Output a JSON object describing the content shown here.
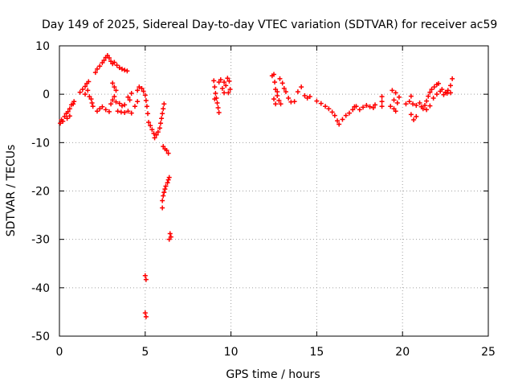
{
  "chart_data": {
    "type": "scatter",
    "title": "Day 149 of 2025, Sidereal Day-to-day VTEC variation (SDTVAR) for receiver ac59",
    "xlabel": "GPS time / hours",
    "ylabel": "SDTVAR / TECUs",
    "xlim": [
      0,
      25
    ],
    "ylim": [
      -50,
      10
    ],
    "xticks": [
      0,
      5,
      10,
      15,
      20,
      25
    ],
    "yticks": [
      10,
      0,
      -10,
      -20,
      -30,
      -40,
      -50
    ],
    "grid": true,
    "legend": "none",
    "marker": "plus",
    "series_color": "#ff0000",
    "series": [
      {
        "name": "SDTVAR",
        "points": [
          [
            0.05,
            -6.0
          ],
          [
            0.12,
            -5.3
          ],
          [
            0.2,
            -5.6
          ],
          [
            0.3,
            -4.6
          ],
          [
            0.4,
            -4.0
          ],
          [
            0.5,
            -3.6
          ],
          [
            0.6,
            -3.0
          ],
          [
            0.7,
            -2.2
          ],
          [
            0.8,
            -2.0
          ],
          [
            0.85,
            -1.5
          ],
          [
            0.45,
            -5.0
          ],
          [
            0.6,
            -4.5
          ],
          [
            1.2,
            0.4
          ],
          [
            1.35,
            1.0
          ],
          [
            1.5,
            1.6
          ],
          [
            1.6,
            2.2
          ],
          [
            1.7,
            2.6
          ],
          [
            1.75,
            -0.5
          ],
          [
            1.85,
            -1.0
          ],
          [
            1.9,
            -1.8
          ],
          [
            1.95,
            -2.5
          ],
          [
            1.5,
            0.0
          ],
          [
            1.65,
            0.8
          ],
          [
            2.1,
            4.5
          ],
          [
            2.2,
            5.2
          ],
          [
            2.35,
            5.8
          ],
          [
            2.5,
            6.5
          ],
          [
            2.6,
            7.0
          ],
          [
            2.7,
            7.6
          ],
          [
            2.8,
            8.0
          ],
          [
            2.9,
            7.5
          ],
          [
            3.0,
            6.8
          ],
          [
            3.1,
            6.3
          ],
          [
            3.2,
            6.6
          ],
          [
            3.35,
            6.0
          ],
          [
            3.5,
            5.5
          ],
          [
            3.65,
            5.2
          ],
          [
            3.8,
            5.0
          ],
          [
            3.95,
            4.8
          ],
          [
            2.2,
            -3.5
          ],
          [
            2.35,
            -3.0
          ],
          [
            2.5,
            -2.6
          ],
          [
            2.7,
            -3.2
          ],
          [
            2.9,
            -3.6
          ],
          [
            3.0,
            -2.0
          ],
          [
            3.1,
            -1.2
          ],
          [
            3.2,
            -0.5
          ],
          [
            3.3,
            -1.6
          ],
          [
            3.5,
            -1.9
          ],
          [
            3.65,
            -2.4
          ],
          [
            3.8,
            -2.2
          ],
          [
            3.1,
            2.3
          ],
          [
            3.2,
            1.5
          ],
          [
            3.3,
            0.8
          ],
          [
            3.4,
            -3.5
          ],
          [
            3.6,
            -3.7
          ],
          [
            3.8,
            -3.8
          ],
          [
            4.0,
            -3.5
          ],
          [
            4.2,
            -3.9
          ],
          [
            4.4,
            -2.5
          ],
          [
            4.55,
            -1.5
          ],
          [
            4.1,
            -1.2
          ],
          [
            4.0,
            -0.6
          ],
          [
            4.2,
            0.2
          ],
          [
            4.55,
            0.8
          ],
          [
            4.65,
            1.5
          ],
          [
            4.8,
            1.2
          ],
          [
            4.9,
            0.6
          ],
          [
            5.0,
            -0.2
          ],
          [
            5.05,
            -1.3
          ],
          [
            5.1,
            -2.5
          ],
          [
            5.15,
            -4.0
          ],
          [
            5.2,
            -5.8
          ],
          [
            5.3,
            -6.5
          ],
          [
            5.4,
            -7.3
          ],
          [
            5.5,
            -8.1
          ],
          [
            5.55,
            -9.0
          ],
          [
            5.65,
            -8.4
          ],
          [
            5.75,
            -7.8
          ],
          [
            5.85,
            -7.0
          ],
          [
            5.9,
            -6.0
          ],
          [
            5.95,
            -5.0
          ],
          [
            6.0,
            -4.0
          ],
          [
            6.05,
            -3.0
          ],
          [
            6.1,
            -2.0
          ],
          [
            6.05,
            -10.8
          ],
          [
            6.15,
            -11.3
          ],
          [
            6.25,
            -11.6
          ],
          [
            6.35,
            -12.2
          ],
          [
            6.0,
            -22.0
          ],
          [
            6.05,
            -21.0
          ],
          [
            6.1,
            -20.3
          ],
          [
            6.15,
            -19.6
          ],
          [
            6.2,
            -19.0
          ],
          [
            6.3,
            -18.3
          ],
          [
            6.35,
            -17.7
          ],
          [
            6.4,
            -17.2
          ],
          [
            6.0,
            -23.5
          ],
          [
            6.45,
            -28.8
          ],
          [
            6.5,
            -29.5
          ],
          [
            6.4,
            -30.0
          ],
          [
            5.0,
            -37.5
          ],
          [
            5.05,
            -38.3
          ],
          [
            5.0,
            -45.2
          ],
          [
            5.05,
            -46.0
          ],
          [
            9.0,
            2.8
          ],
          [
            9.05,
            1.5
          ],
          [
            9.1,
            0.2
          ],
          [
            9.15,
            -0.8
          ],
          [
            9.2,
            -1.8
          ],
          [
            9.25,
            -2.8
          ],
          [
            9.3,
            -3.8
          ],
          [
            9.05,
            -1.0
          ],
          [
            9.3,
            2.5
          ],
          [
            9.4,
            3.0
          ],
          [
            9.5,
            1.2
          ],
          [
            9.6,
            0.3
          ],
          [
            9.7,
            1.8
          ],
          [
            9.8,
            3.3
          ],
          [
            9.9,
            2.7
          ],
          [
            9.95,
            1.0
          ],
          [
            9.85,
            0.3
          ],
          [
            9.6,
            2.5
          ],
          [
            12.4,
            3.8
          ],
          [
            12.5,
            4.1
          ],
          [
            12.55,
            2.5
          ],
          [
            12.6,
            1.0
          ],
          [
            12.7,
            -0.3
          ],
          [
            12.8,
            -1.3
          ],
          [
            12.9,
            -2.0
          ],
          [
            12.5,
            -1.0
          ],
          [
            12.6,
            -2.0
          ],
          [
            12.7,
            0.5
          ],
          [
            12.85,
            3.2
          ],
          [
            13.0,
            2.3
          ],
          [
            13.1,
            1.2
          ],
          [
            13.2,
            0.5
          ],
          [
            13.35,
            -0.8
          ],
          [
            13.5,
            -1.6
          ],
          [
            13.7,
            -1.5
          ],
          [
            13.9,
            0.5
          ],
          [
            14.1,
            1.5
          ],
          [
            14.3,
            -0.3
          ],
          [
            14.45,
            -0.8
          ],
          [
            14.6,
            -0.5
          ],
          [
            15.0,
            -1.4
          ],
          [
            15.25,
            -1.9
          ],
          [
            15.5,
            -2.5
          ],
          [
            15.7,
            -3.0
          ],
          [
            15.9,
            -3.7
          ],
          [
            16.05,
            -4.4
          ],
          [
            16.2,
            -5.5
          ],
          [
            16.3,
            -6.2
          ],
          [
            16.5,
            -5.2
          ],
          [
            16.7,
            -4.4
          ],
          [
            16.9,
            -3.9
          ],
          [
            17.1,
            -3.2
          ],
          [
            17.2,
            -2.6
          ],
          [
            17.3,
            -2.5
          ],
          [
            17.5,
            -3.2
          ],
          [
            17.7,
            -2.7
          ],
          [
            17.9,
            -2.3
          ],
          [
            18.1,
            -2.6
          ],
          [
            18.3,
            -2.8
          ],
          [
            18.4,
            -2.2
          ],
          [
            18.8,
            -2.5
          ],
          [
            18.8,
            -1.5
          ],
          [
            18.8,
            -0.5
          ],
          [
            19.3,
            -2.5
          ],
          [
            19.5,
            -3.0
          ],
          [
            19.6,
            -3.5
          ],
          [
            19.7,
            -1.8
          ],
          [
            19.8,
            -0.6
          ],
          [
            19.6,
            0.3
          ],
          [
            19.4,
            0.8
          ],
          [
            19.5,
            -1.2
          ],
          [
            20.2,
            -2.0
          ],
          [
            20.4,
            -1.5
          ],
          [
            20.6,
            -2.0
          ],
          [
            20.8,
            -2.3
          ],
          [
            20.5,
            -4.2
          ],
          [
            20.65,
            -5.3
          ],
          [
            20.8,
            -4.6
          ],
          [
            20.5,
            -0.4
          ],
          [
            21.0,
            -1.8
          ],
          [
            21.1,
            -2.6
          ],
          [
            21.2,
            -3.0
          ],
          [
            21.3,
            -2.3
          ],
          [
            21.4,
            -1.4
          ],
          [
            21.5,
            -0.4
          ],
          [
            21.6,
            0.4
          ],
          [
            21.7,
            1.0
          ],
          [
            21.85,
            1.5
          ],
          [
            22.0,
            2.0
          ],
          [
            22.1,
            2.2
          ],
          [
            22.3,
            1.0
          ],
          [
            22.5,
            0.4
          ],
          [
            22.65,
            0.8
          ],
          [
            22.8,
            1.8
          ],
          [
            22.9,
            3.2
          ],
          [
            21.4,
            -3.2
          ],
          [
            21.6,
            -2.4
          ],
          [
            21.8,
            -0.8
          ],
          [
            22.0,
            0.0
          ],
          [
            22.2,
            0.6
          ],
          [
            22.4,
            -0.1
          ],
          [
            22.6,
            0.2
          ],
          [
            22.8,
            0.3
          ]
        ]
      }
    ]
  }
}
